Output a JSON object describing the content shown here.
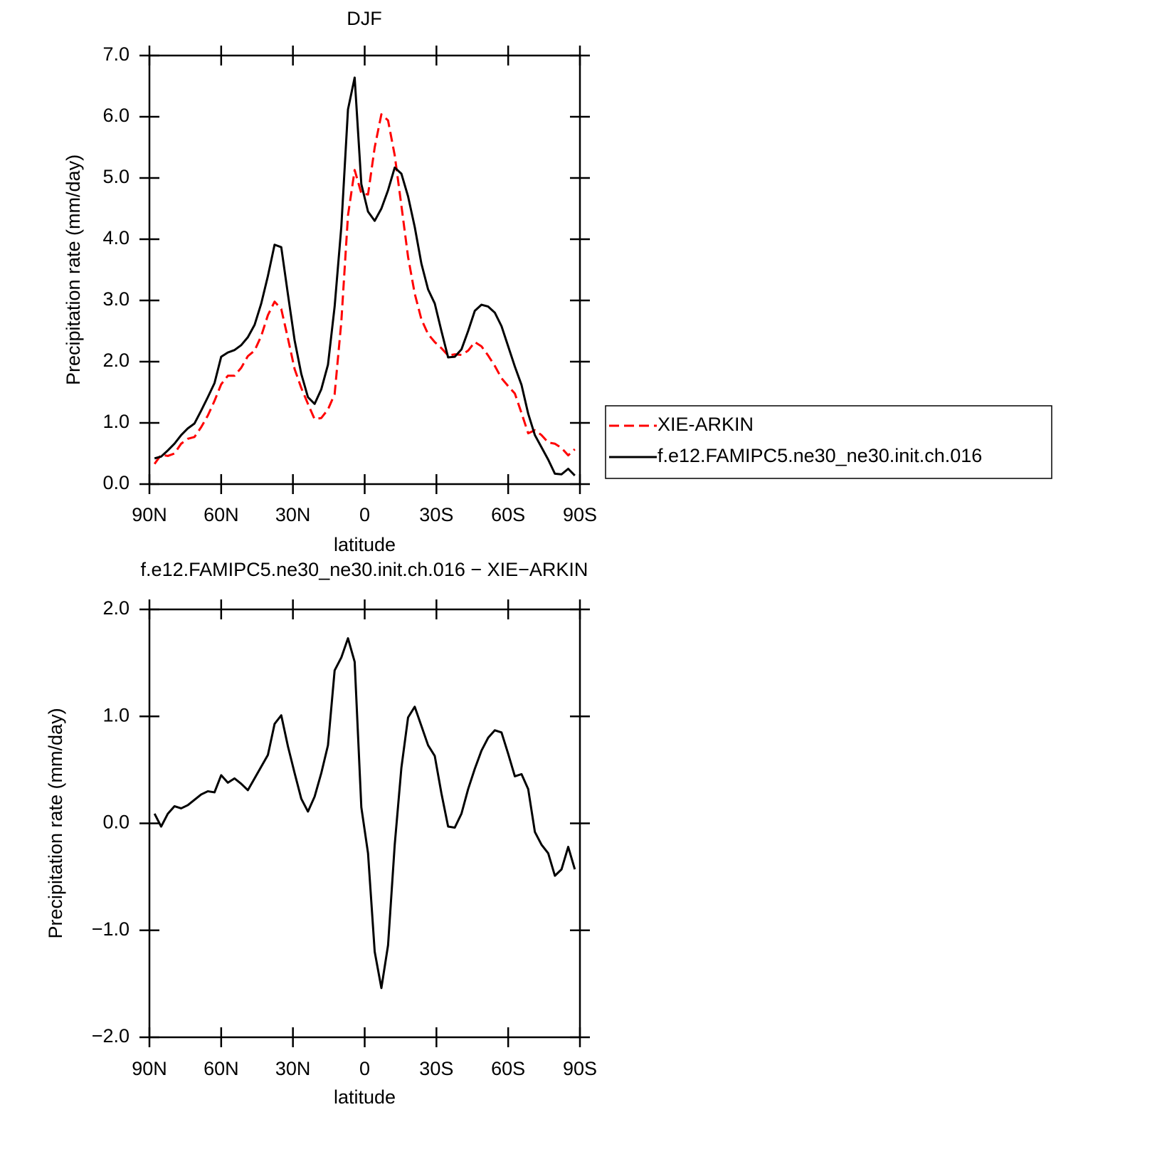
{
  "chart_data": [
    {
      "type": "line",
      "title": "DJF",
      "x_label": "latitude",
      "y_label": "Precipitation rate (mm/day)",
      "x": [
        87.86,
        85.1,
        82.31,
        79.53,
        76.74,
        73.95,
        71.16,
        68.37,
        65.58,
        62.79,
        60.0,
        57.21,
        54.42,
        51.63,
        48.84,
        46.04,
        43.25,
        40.46,
        37.67,
        34.88,
        32.09,
        29.3,
        26.51,
        23.72,
        20.93,
        18.14,
        15.35,
        12.56,
        9.77,
        6.98,
        4.19,
        1.4,
        -1.4,
        -4.19,
        -6.98,
        -9.77,
        -12.56,
        -15.35,
        -18.14,
        -20.93,
        -23.72,
        -26.51,
        -29.3,
        -32.09,
        -34.88,
        -37.67,
        -40.46,
        -43.25,
        -46.04,
        -48.84,
        -51.63,
        -54.42,
        -57.21,
        -60.0,
        -62.79,
        -65.58,
        -68.37,
        -71.16,
        -73.95,
        -76.74,
        -79.53,
        -82.31,
        -85.1,
        -87.86
      ],
      "series": [
        {
          "name": "XIE-ARKIN",
          "color": "#ff0000",
          "line_style": "dashed",
          "values": [
            0.33,
            0.48,
            0.46,
            0.5,
            0.66,
            0.74,
            0.77,
            0.93,
            1.12,
            1.36,
            1.63,
            1.77,
            1.77,
            1.9,
            2.09,
            2.18,
            2.42,
            2.76,
            2.98,
            2.86,
            2.38,
            1.88,
            1.57,
            1.31,
            1.06,
            1.08,
            1.22,
            1.47,
            2.65,
            4.39,
            5.13,
            4.75,
            4.73,
            5.5,
            6.04,
            5.94,
            5.37,
            4.55,
            3.71,
            3.11,
            2.69,
            2.45,
            2.32,
            2.22,
            2.1,
            2.12,
            2.11,
            2.18,
            2.32,
            2.25,
            2.1,
            1.93,
            1.73,
            1.6,
            1.48,
            1.16,
            0.83,
            0.88,
            0.8,
            0.68,
            0.66,
            0.59,
            0.47,
            0.57
          ]
        },
        {
          "name": "f.e12.FAMIPC5.ne30_ne30.init.ch.016",
          "color": "#000000",
          "line_style": "solid",
          "values": [
            0.42,
            0.45,
            0.55,
            0.66,
            0.8,
            0.91,
            0.99,
            1.2,
            1.42,
            1.65,
            2.08,
            2.15,
            2.19,
            2.27,
            2.4,
            2.6,
            2.95,
            3.4,
            3.91,
            3.87,
            3.1,
            2.35,
            1.8,
            1.42,
            1.31,
            1.55,
            1.95,
            2.9,
            4.2,
            6.12,
            6.64,
            4.9,
            4.45,
            4.3,
            4.5,
            4.8,
            5.17,
            5.07,
            4.7,
            4.2,
            3.6,
            3.18,
            2.95,
            2.5,
            2.07,
            2.08,
            2.2,
            2.5,
            2.83,
            2.93,
            2.9,
            2.8,
            2.58,
            2.25,
            1.92,
            1.62,
            1.15,
            0.8,
            0.6,
            0.4,
            0.17,
            0.16,
            0.25,
            0.14
          ]
        }
      ],
      "xlim": [
        90,
        -90
      ],
      "xticks": [
        {
          "value": 90,
          "label": "90N"
        },
        {
          "value": 60,
          "label": "60N"
        },
        {
          "value": 30,
          "label": "30N"
        },
        0,
        {
          "value": -30,
          "label": "30S"
        },
        {
          "value": -60,
          "label": "60S"
        },
        {
          "value": -90,
          "label": "90S"
        }
      ],
      "ylim": [
        0,
        7
      ],
      "yticks": [
        {
          "value": 0,
          "label": "0.0"
        },
        {
          "value": 1,
          "label": "1.0"
        },
        {
          "value": 2,
          "label": "2.0"
        },
        {
          "value": 3,
          "label": "3.0"
        },
        {
          "value": 4,
          "label": "4.0"
        },
        {
          "value": 5,
          "label": "5.0"
        },
        {
          "value": 6,
          "label": "6.0"
        },
        {
          "value": 7,
          "label": "7.0"
        }
      ],
      "legend": "right"
    },
    {
      "type": "line",
      "title": "f.e12.FAMIPC5.ne30_ne30.init.ch.016 − XIE−ARKIN",
      "x_label": "latitude",
      "y_label": "Precipitation rate (mm/day)",
      "x": [
        87.86,
        85.1,
        82.31,
        79.53,
        76.74,
        73.95,
        71.16,
        68.37,
        65.58,
        62.79,
        60.0,
        57.21,
        54.42,
        51.63,
        48.84,
        46.04,
        43.25,
        40.46,
        37.67,
        34.88,
        32.09,
        29.3,
        26.51,
        23.72,
        20.93,
        18.14,
        15.35,
        12.56,
        9.77,
        6.98,
        4.19,
        1.4,
        -1.4,
        -4.19,
        -6.98,
        -9.77,
        -12.56,
        -15.35,
        -18.14,
        -20.93,
        -23.72,
        -26.51,
        -29.3,
        -32.09,
        -34.88,
        -37.67,
        -40.46,
        -43.25,
        -46.04,
        -48.84,
        -51.63,
        -54.42,
        -57.21,
        -60.0,
        -62.79,
        -65.58,
        -68.37,
        -71.16,
        -73.95,
        -76.74,
        -79.53,
        -82.31,
        -85.1,
        -87.86
      ],
      "series": [
        {
          "color": "#000000",
          "line_style": "solid",
          "values": [
            0.09,
            -0.03,
            0.09,
            0.16,
            0.14,
            0.17,
            0.22,
            0.27,
            0.3,
            0.29,
            0.45,
            0.38,
            0.42,
            0.37,
            0.31,
            0.42,
            0.53,
            0.64,
            0.93,
            1.01,
            0.72,
            0.47,
            0.23,
            0.11,
            0.25,
            0.47,
            0.73,
            1.43,
            1.55,
            1.73,
            1.51,
            0.15,
            -0.28,
            -1.2,
            -1.54,
            -1.14,
            -0.2,
            0.52,
            0.99,
            1.09,
            0.91,
            0.73,
            0.63,
            0.28,
            -0.03,
            -0.04,
            0.09,
            0.32,
            0.51,
            0.68,
            0.8,
            0.87,
            0.85,
            0.65,
            0.44,
            0.46,
            0.32,
            -0.08,
            -0.2,
            -0.28,
            -0.49,
            -0.43,
            -0.22,
            -0.43
          ]
        }
      ],
      "xlim": [
        90,
        -90
      ],
      "xticks": [
        {
          "value": 90,
          "label": "90N"
        },
        {
          "value": 60,
          "label": "60N"
        },
        {
          "value": 30,
          "label": "30N"
        },
        0,
        {
          "value": -30,
          "label": "30S"
        },
        {
          "value": -60,
          "label": "60S"
        },
        {
          "value": -90,
          "label": "90S"
        }
      ],
      "ylim": [
        -2,
        2
      ],
      "yticks": [
        {
          "value": -2,
          "label": "−2.0"
        },
        {
          "value": -1,
          "label": "−1.0"
        },
        {
          "value": 0,
          "label": "0.0"
        },
        {
          "value": 1,
          "label": "1.0"
        },
        {
          "value": 2,
          "label": "2.0"
        }
      ]
    }
  ]
}
